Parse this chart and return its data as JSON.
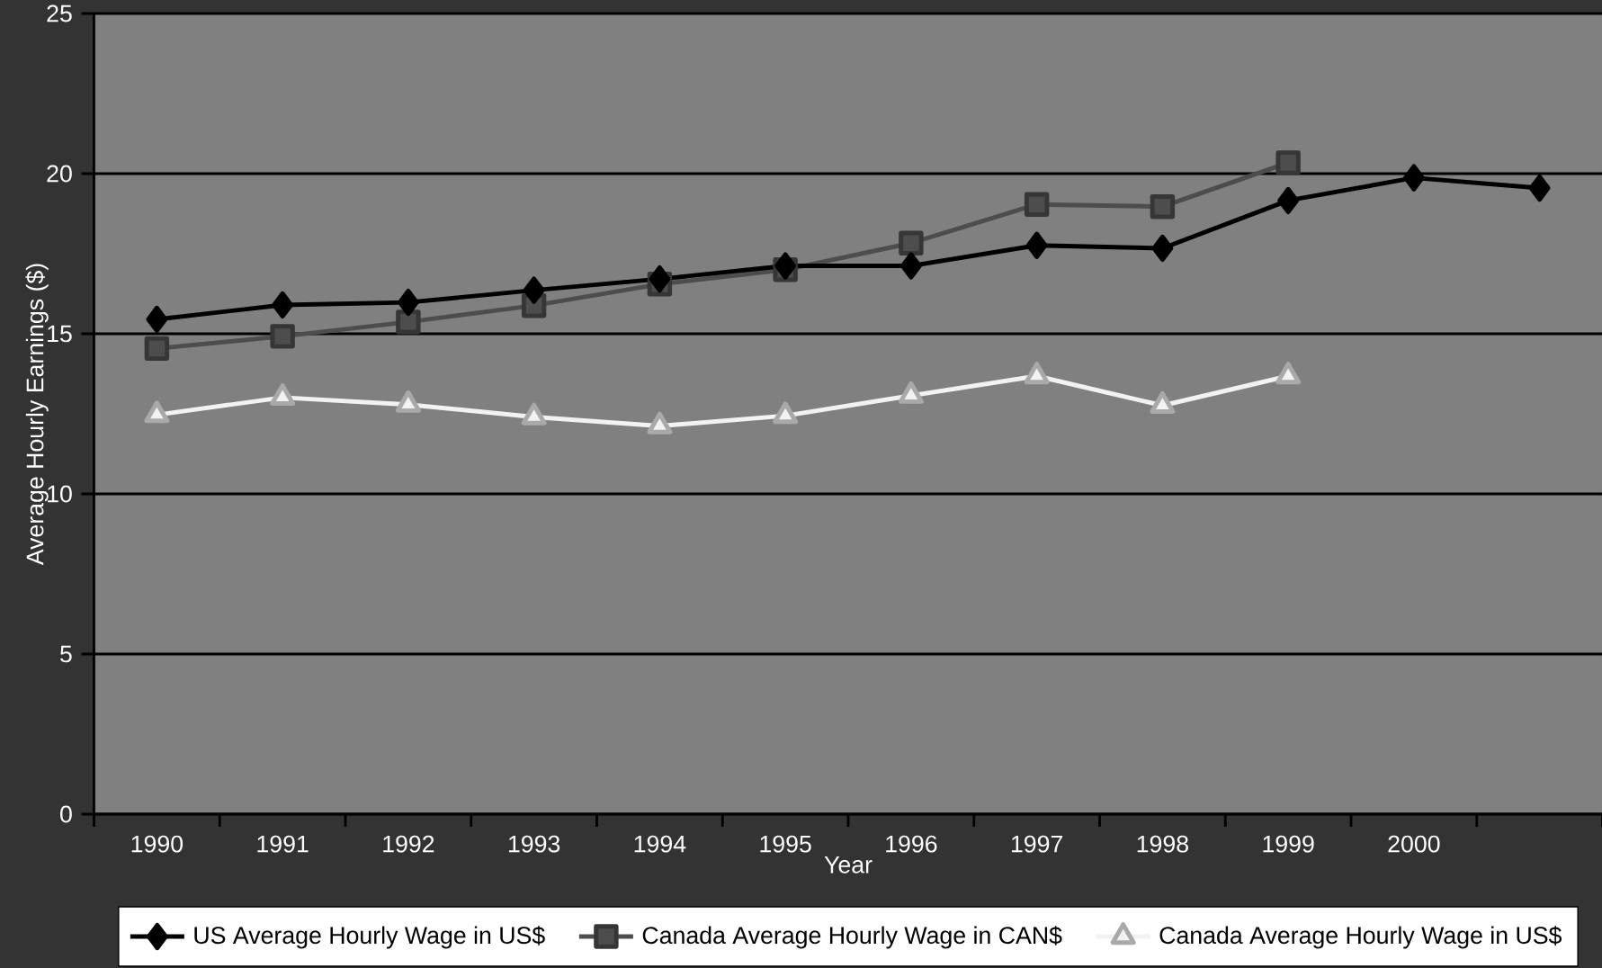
{
  "chart_data": {
    "type": "line",
    "xlabel": "Year",
    "ylabel": "Average Hourly Earnings ($)",
    "categories": [
      "1990",
      "1991",
      "1992",
      "1993",
      "1994",
      "1995",
      "1996",
      "1997",
      "1998",
      "1999",
      "2000",
      null
    ],
    "series": [
      {
        "name": "US Average Hourly Wage in US$",
        "color": "#000000",
        "marker": "diamond",
        "values": [
          15.45,
          15.9,
          15.98,
          16.36,
          16.71,
          17.12,
          17.12,
          17.76,
          17.67,
          19.16,
          19.87,
          19.55
        ]
      },
      {
        "name": "Canada Average Hourly Wage in CAN$",
        "color": "#4d4d4d",
        "marker": "square",
        "values": [
          14.54,
          14.92,
          15.37,
          15.88,
          16.55,
          17.0,
          17.83,
          19.04,
          18.97,
          20.34,
          null,
          null
        ]
      },
      {
        "name": "Canada Average Hourly Wage in US$",
        "color": "#f2f2f2",
        "marker": "triangle",
        "values": [
          12.47,
          13.01,
          12.79,
          12.4,
          12.12,
          12.44,
          13.07,
          13.68,
          12.76,
          13.68,
          null,
          null
        ]
      }
    ],
    "ylim": [
      0,
      25
    ],
    "yticks": [
      0,
      5,
      10,
      15,
      20,
      25
    ],
    "grid": "y",
    "legend": "bottom"
  }
}
